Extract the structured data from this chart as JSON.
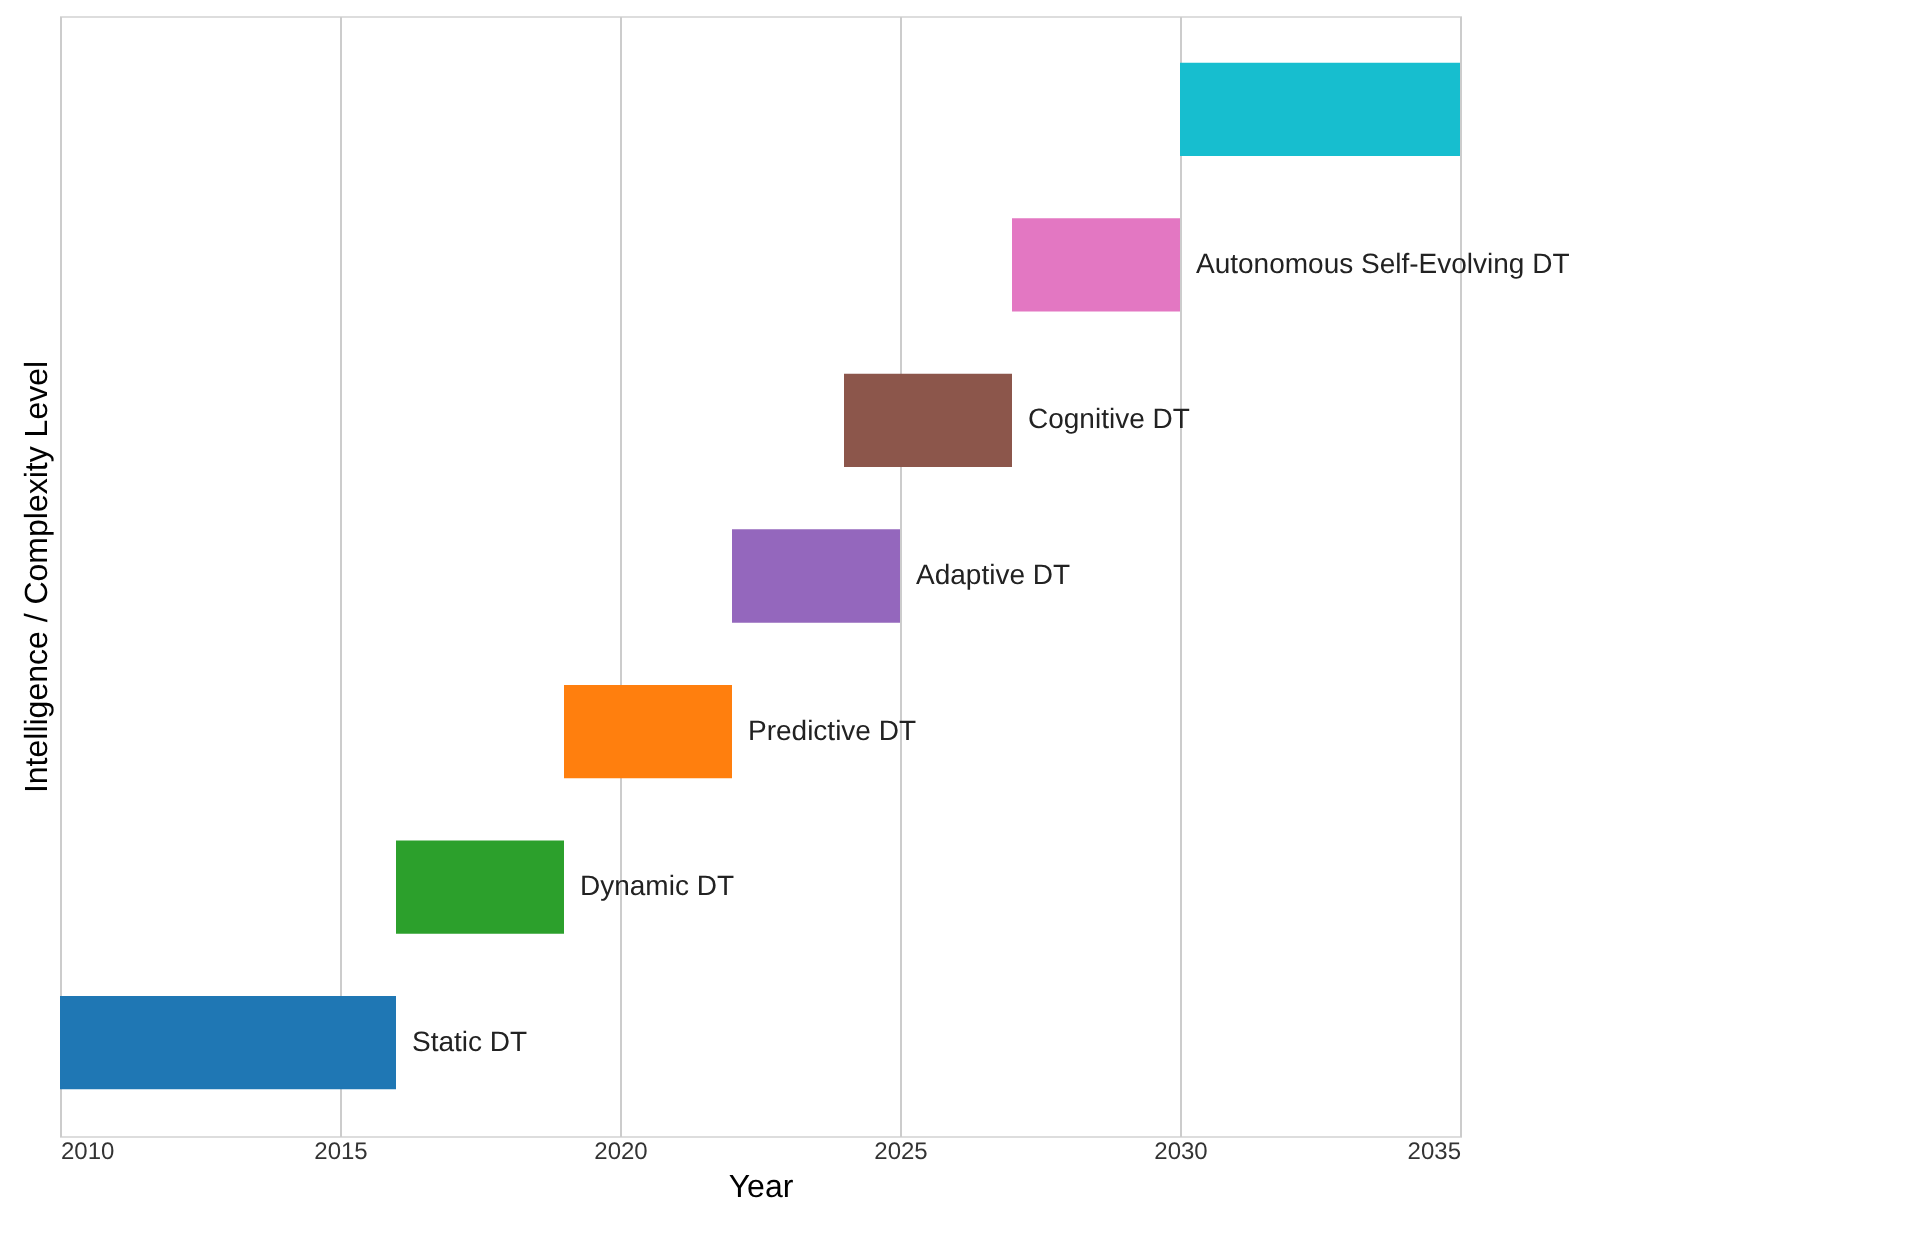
{
  "chart_data": {
    "type": "bar",
    "orientation": "horizontal",
    "xlabel": "Year",
    "ylabel": "Intelligence / Complexity Level",
    "categories": [
      null,
      "Autonomous Self-Evolving DT",
      "Cognitive DT",
      "Adaptive DT",
      "Predictive DT",
      "Dynamic DT",
      "Static DT"
    ],
    "base": [
      2030,
      2027,
      2024,
      2022,
      2019,
      2016,
      2010
    ],
    "values": [
      5,
      3,
      3,
      3,
      3,
      3,
      6
    ],
    "colors": [
      "#17becf",
      "#e377c2",
      "#8c564b",
      "#9467bd",
      "#ff7f0e",
      "#2ca02c",
      "#1f77b4"
    ],
    "xlim": [
      2010,
      2035
    ],
    "xticks": [
      2010,
      2015,
      2020,
      2025,
      2030,
      2035
    ],
    "grid": "x",
    "tick_labels": "x"
  }
}
